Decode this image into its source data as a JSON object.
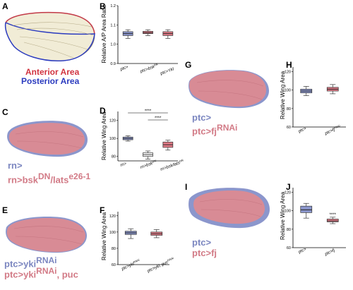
{
  "panel_letters": [
    "A",
    "B",
    "C",
    "D",
    "E",
    "F",
    "G",
    "H",
    "I",
    "J"
  ],
  "colors": {
    "blue_fill": "#8b96cc",
    "red_fill": "#e07a86",
    "white_fill": "#ffffff",
    "anterior_text": "#d1333f",
    "posterior_text": "#2b3bbf"
  },
  "panel_a": {
    "anterior_label": "Anterior Area",
    "posterior_label": "Posterior Area"
  },
  "panel_c": {
    "line1": "rn>",
    "line2": "rn>bsk",
    "line2_sup": "DN",
    "line2_rest": "/lats",
    "line2_sup2": "e26-1"
  },
  "panel_e": {
    "line1": "ptc>yki",
    "line1_sup": "RNAi",
    "line2": "ptc>yki",
    "line2_sup": "RNAi",
    "line2_rest": ", puc"
  },
  "panel_g": {
    "line1": "ptc>",
    "line2": "ptc>fj",
    "line2_sup": "RNAi"
  },
  "panel_i": {
    "line1": "ptc>",
    "line2": "ptc>fj"
  },
  "chart_data": [
    {
      "panel": "B",
      "type": "box",
      "ylabel": "Relative A/P Area Ratio",
      "yticks": [
        "0.9",
        "1.0",
        "1.1",
        "1.2"
      ],
      "ylim": [
        0.9,
        1.2
      ],
      "categories": [
        "ptc>",
        "ptc>bsk",
        "ptc>Ykl"
      ],
      "category_sups": [
        "",
        "DN",
        ""
      ],
      "series": [
        {
          "min": 1.03,
          "q1": 1.045,
          "median": 1.055,
          "q3": 1.065,
          "max": 1.075,
          "color": "#8b96cc"
        },
        {
          "min": 1.045,
          "q1": 1.055,
          "median": 1.06,
          "q3": 1.067,
          "max": 1.075,
          "color": "#e07a86"
        },
        {
          "min": 1.03,
          "q1": 1.045,
          "median": 1.055,
          "q3": 1.065,
          "max": 1.075,
          "color": "#e07a86"
        }
      ]
    },
    {
      "panel": "D",
      "type": "box",
      "ylabel": "Relative Wing Area",
      "yticks": [
        "80",
        "100",
        "120"
      ],
      "ylim": [
        75,
        130
      ],
      "categories": [
        "rn>",
        "rn>bsk",
        "rn>bsk/lats"
      ],
      "category_sups": [
        "",
        "DN",
        "DN"
      ],
      "significance": [
        "****",
        "****"
      ],
      "series": [
        {
          "min": 97,
          "q1": 98.5,
          "median": 100,
          "q3": 101.5,
          "max": 103,
          "color": "#8b96cc"
        },
        {
          "min": 77,
          "q1": 80,
          "median": 82,
          "q3": 84,
          "max": 86,
          "color": "#ffffff"
        },
        {
          "min": 87,
          "q1": 90,
          "median": 93,
          "q3": 96,
          "max": 98,
          "color": "#e07a86"
        }
      ]
    },
    {
      "panel": "F",
      "type": "box",
      "ylabel": "Relative Wing Area",
      "yticks": [
        "60",
        "80",
        "100",
        "120"
      ],
      "ylim": [
        60,
        125
      ],
      "categories": [
        "ptc>yki",
        "ptc>yki, puc"
      ],
      "category_sups": [
        "RNAi",
        "RNAi"
      ],
      "series": [
        {
          "min": 92,
          "q1": 97,
          "median": 99,
          "q3": 101,
          "max": 104,
          "color": "#8b96cc"
        },
        {
          "min": 93,
          "q1": 96,
          "median": 98,
          "q3": 100,
          "max": 103,
          "color": "#e07a86"
        }
      ]
    },
    {
      "panel": "H",
      "type": "box",
      "ylabel": "Relative Wing Area",
      "yticks": [
        "60",
        "80",
        "100",
        "120"
      ],
      "ylim": [
        60,
        125
      ],
      "categories": [
        "ptc>",
        "ptc>fj"
      ],
      "category_sups": [
        "",
        "RNAi"
      ],
      "series": [
        {
          "min": 94,
          "q1": 97,
          "median": 99,
          "q3": 101,
          "max": 104,
          "color": "#8b96cc"
        },
        {
          "min": 96,
          "q1": 99,
          "median": 101,
          "q3": 103,
          "max": 106,
          "color": "#e07a86"
        }
      ]
    },
    {
      "panel": "J",
      "type": "box",
      "ylabel": "Relative Wing Area",
      "yticks": [
        "60",
        "80",
        "100",
        "120"
      ],
      "ylim": [
        60,
        125
      ],
      "categories": [
        "ptc>",
        "ptc>fj"
      ],
      "category_sups": [
        "",
        ""
      ],
      "significance": [
        "****"
      ],
      "series": [
        {
          "min": 92,
          "q1": 98,
          "median": 101,
          "q3": 105,
          "max": 108,
          "color": "#8b96cc"
        },
        {
          "min": 86,
          "q1": 88,
          "median": 89,
          "q3": 91,
          "max": 93,
          "color": "#e07a86"
        }
      ]
    }
  ]
}
